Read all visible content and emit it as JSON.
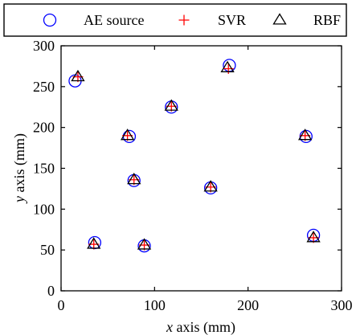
{
  "chart_data": {
    "type": "scatter",
    "xlabel": {
      "var": "x",
      "rest": " axis (mm)"
    },
    "ylabel": {
      "var": "y",
      "rest": " axis (mm)"
    },
    "xlim": [
      0,
      300
    ],
    "ylim": [
      0,
      300
    ],
    "x_ticks": [
      0,
      100,
      200,
      300
    ],
    "y_ticks": [
      0,
      50,
      100,
      150,
      200,
      250,
      300
    ],
    "grid": false,
    "legend_position": "top",
    "series": [
      {
        "name": "AE source",
        "marker": "circle",
        "color": "#0000ff",
        "points": [
          [
            15,
            257
          ],
          [
            36,
            59
          ],
          [
            73,
            189
          ],
          [
            78,
            135
          ],
          [
            89,
            55
          ],
          [
            118,
            225
          ],
          [
            160,
            126
          ],
          [
            180,
            276
          ],
          [
            262,
            189
          ],
          [
            270,
            68
          ]
        ]
      },
      {
        "name": "SVR",
        "marker": "plus",
        "color": "#ff0000",
        "points": [
          [
            18,
            262
          ],
          [
            35,
            57
          ],
          [
            71,
            190
          ],
          [
            78,
            136
          ],
          [
            89,
            56
          ],
          [
            118,
            226
          ],
          [
            160,
            127
          ],
          [
            179,
            272
          ],
          [
            261,
            190
          ],
          [
            270,
            65
          ]
        ]
      },
      {
        "name": "RBF",
        "marker": "triangle",
        "color": "#000000",
        "points": [
          [
            18,
            262
          ],
          [
            35,
            57
          ],
          [
            71,
            190
          ],
          [
            78,
            136
          ],
          [
            89,
            56
          ],
          [
            118,
            226
          ],
          [
            160,
            127
          ],
          [
            178,
            273
          ],
          [
            261,
            190
          ],
          [
            270,
            65
          ]
        ]
      }
    ]
  }
}
